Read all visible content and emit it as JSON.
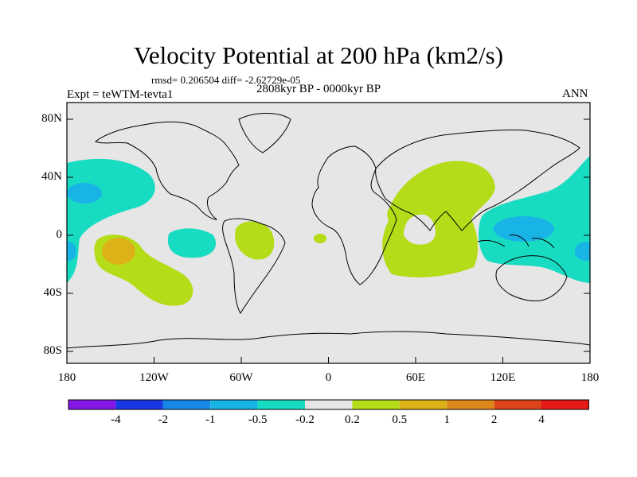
{
  "title": "Velocity Potential at 200 hPa (km2/s)",
  "stats": "rmsd= 0.206504 diff= -2.62729e-05",
  "experiment": "Expt = teWTM-tevta1",
  "period": "2808kyr BP - 0000kyr BP",
  "season": "ANN",
  "map": {
    "lat_ticks": [
      "80N",
      "40N",
      "0",
      "40S",
      "80S"
    ],
    "lon_ticks": [
      "180",
      "120W",
      "60W",
      "0",
      "60E",
      "120E",
      "180"
    ],
    "colors": {
      "background": "#e6e6e6",
      "cyan_light": "#18dcc2",
      "blue_light": "#19b4e6",
      "yellow_green": "#b4dc18",
      "orange": "#ddb219",
      "coast": "#000000"
    }
  },
  "colorbar": {
    "labels": [
      "-4",
      "-2",
      "-1",
      "-0.5",
      "-0.2",
      "0.2",
      "0.5",
      "1",
      "2",
      "4"
    ],
    "colors": [
      "#8418e6",
      "#1838e6",
      "#1888e6",
      "#19b4e6",
      "#18dcc2",
      "#e6e6e6",
      "#b4dc18",
      "#ddb219",
      "#dd8619",
      "#dd4419",
      "#e61818"
    ]
  }
}
